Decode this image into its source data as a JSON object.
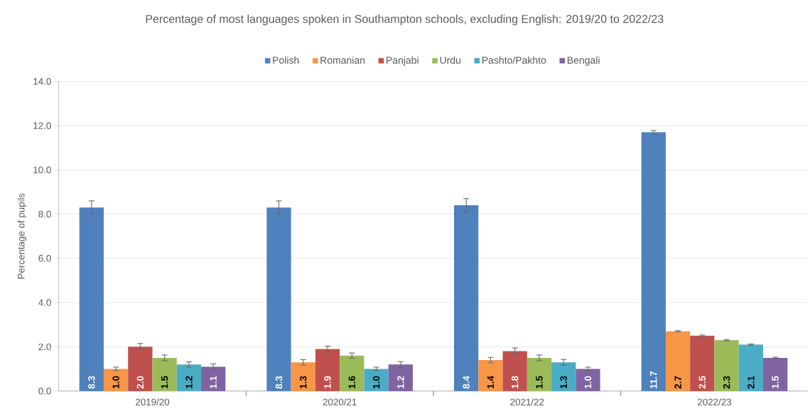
{
  "chart_data": {
    "type": "bar",
    "title": "Percentage of most languages spoken in Southampton schools, excluding English: 2019/20 to 2022/23",
    "ylabel": "Percentage of pupils",
    "categories": [
      "2019/20",
      "2020/21",
      "2021/22",
      "2022/23"
    ],
    "series": [
      {
        "name": "Polish",
        "color": "#4f81bd",
        "values": [
          8.3,
          8.3,
          8.4,
          11.7
        ],
        "errors": [
          0.3,
          0.3,
          0.3,
          0.08
        ],
        "value_labels": [
          "8.3",
          "8.3",
          "8.4",
          "11.7"
        ]
      },
      {
        "name": "Romanian",
        "color": "#f79646",
        "values": [
          1.0,
          1.3,
          1.4,
          2.7
        ],
        "errors": [
          0.08,
          0.12,
          0.12,
          0.03
        ],
        "value_labels": [
          "1.0",
          "1.3",
          "1.4",
          "2.7"
        ]
      },
      {
        "name": "Panjabi",
        "color": "#c0504d",
        "values": [
          2.0,
          1.9,
          1.8,
          2.5
        ],
        "errors": [
          0.15,
          0.13,
          0.15,
          0.03
        ],
        "value_labels": [
          "2.0",
          "1.9",
          "1.8",
          "2.5"
        ]
      },
      {
        "name": "Urdu",
        "color": "#9bbb59",
        "values": [
          1.5,
          1.6,
          1.5,
          2.3
        ],
        "errors": [
          0.13,
          0.12,
          0.13,
          0.03
        ],
        "value_labels": [
          "1.5",
          "1.6",
          "1.5",
          "2.3"
        ]
      },
      {
        "name": "Pashto/Pakhto",
        "color": "#4bacc6",
        "values": [
          1.2,
          1.0,
          1.3,
          2.1
        ],
        "errors": [
          0.12,
          0.08,
          0.13,
          0.03
        ],
        "value_labels": [
          "1.2",
          "1.0",
          "1.3",
          "2.1"
        ]
      },
      {
        "name": "Bengali",
        "color": "#8064a2",
        "values": [
          1.1,
          1.2,
          1.0,
          1.5
        ],
        "errors": [
          0.13,
          0.13,
          0.08,
          0.03
        ],
        "value_labels": [
          "1.1",
          "1.2",
          "1.0",
          "1.5"
        ]
      }
    ],
    "ylim": [
      0,
      14
    ],
    "yticks": [
      {
        "value": 0,
        "label": "0.0"
      },
      {
        "value": 2,
        "label": "2.0"
      },
      {
        "value": 4,
        "label": "4.0"
      },
      {
        "value": 6,
        "label": "6.0"
      },
      {
        "value": 8,
        "label": "8.0"
      },
      {
        "value": 10,
        "label": "10.0"
      },
      {
        "value": 12,
        "label": "12.0"
      },
      {
        "value": 14,
        "label": "14.0"
      }
    ],
    "grid": "y",
    "legend": "top"
  }
}
